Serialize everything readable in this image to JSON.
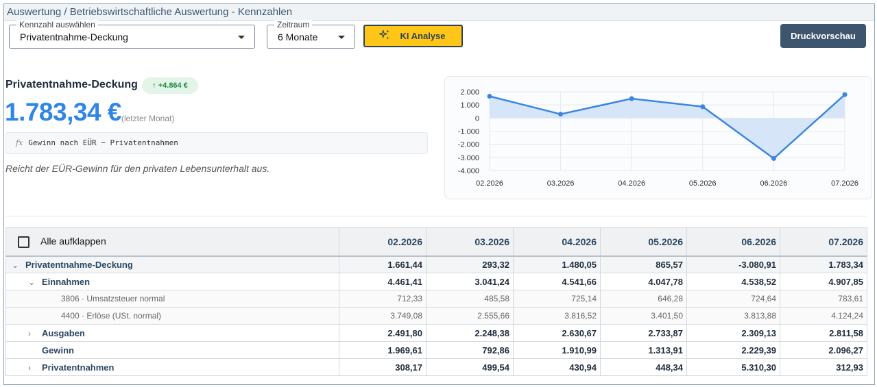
{
  "window": {
    "title": "Auswertung / Betriebswirtschaftliche Auswertung - Kennzahlen"
  },
  "controls": {
    "kennzahl": {
      "legend": "Kennzahl auswählen",
      "value": "Privatentnahme-Deckung"
    },
    "zeitraum": {
      "legend": "Zeitraum",
      "value": "6 Monate"
    },
    "ki_button": "KI Analyse",
    "print_button": "Druckvorschau"
  },
  "kpi": {
    "title": "Privatentnahme-Deckung",
    "badge": "+4.864 €",
    "value": "1.783,34 €",
    "value_note": "(letzter Monat)",
    "formula": "Gewinn nach EÜR − Privatentnahmen",
    "description": "Reicht der EÜR-Gewinn für den privaten Lebensunterhalt aus."
  },
  "chart_data": {
    "type": "area",
    "x": [
      "02.2026",
      "03.2026",
      "04.2026",
      "05.2026",
      "06.2026",
      "07.2026"
    ],
    "y_tick_labels": [
      "2.000",
      "1.000",
      "0",
      "-1.000",
      "-2.000",
      "-3.000",
      "-4.000"
    ],
    "y_ticks": [
      2000,
      1000,
      0,
      -1000,
      -2000,
      -3000,
      -4000
    ],
    "series": [
      {
        "values": [
          1661.44,
          293.32,
          1480.05,
          865.57,
          -3080.91,
          1783.34
        ]
      }
    ],
    "ylim": [
      -4000,
      2000
    ],
    "grid": true,
    "line_color": "#3a86e0",
    "fill_color": "#d6e6f8"
  },
  "table": {
    "expand_all_label": "Alle aufklappen",
    "columns": [
      "02.2026",
      "03.2026",
      "04.2026",
      "05.2026",
      "06.2026",
      "07.2026"
    ],
    "rows": [
      {
        "label": "Privatentnahme-Deckung",
        "chevron": "⌄",
        "values": [
          "1.661,44",
          "293,32",
          "1.480,05",
          "865,57",
          "-3.080,91",
          "1.783,34"
        ]
      },
      {
        "label": "Einnahmen",
        "chevron": "⌄",
        "values": [
          "4.461,41",
          "3.041,24",
          "4.541,66",
          "4.047,78",
          "4.538,52",
          "4.907,85"
        ]
      },
      {
        "label": "3806 · Umsatzsteuer normal",
        "chevron": "",
        "values": [
          "712,33",
          "485,58",
          "725,14",
          "646,28",
          "724,64",
          "783,61"
        ]
      },
      {
        "label": "4400 · Erlöse (USt. normal)",
        "chevron": "",
        "values": [
          "3.749,08",
          "2.555,66",
          "3.816,52",
          "3.401,50",
          "3.813,88",
          "4.124,24"
        ]
      },
      {
        "label": "Ausgaben",
        "chevron": "›",
        "values": [
          "2.491,80",
          "2.248,38",
          "2.630,67",
          "2.733,87",
          "2.309,13",
          "2.811,58"
        ]
      },
      {
        "label": "Gewinn",
        "chevron": "",
        "values": [
          "1.969,61",
          "792,86",
          "1.910,99",
          "1.313,91",
          "2.229,39",
          "2.096,27"
        ]
      },
      {
        "label": "Privatentnahmen",
        "chevron": "›",
        "values": [
          "308,17",
          "499,54",
          "430,94",
          "448,34",
          "5.310,30",
          "312,93"
        ]
      }
    ]
  }
}
